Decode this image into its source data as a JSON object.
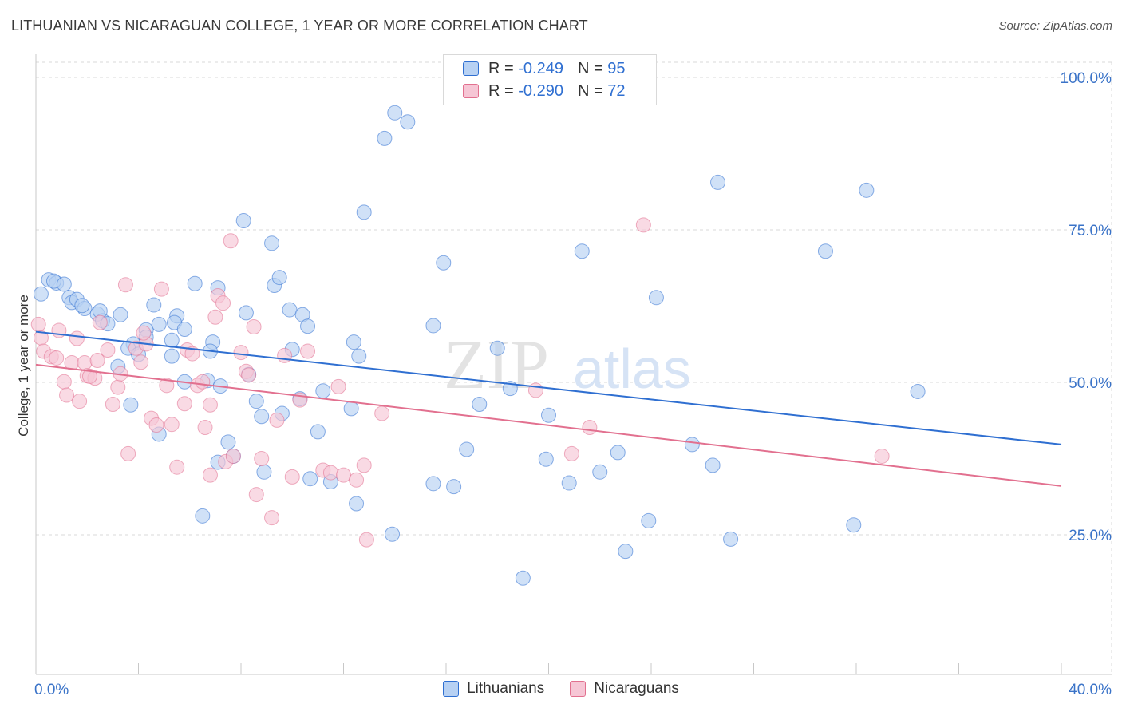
{
  "title": "LITHUANIAN VS NICARAGUAN COLLEGE, 1 YEAR OR MORE CORRELATION CHART",
  "source": "Source: ZipAtlas.com",
  "colors": {
    "blue": "#2f6fd1",
    "blue_fill": "#b7d1f3",
    "pink": "#e2708f",
    "pink_fill": "#f6c6d5",
    "grid": "#d9d9d9",
    "axis_label": "#3a73c8"
  },
  "legend": {
    "r_label": "R =",
    "n_label": "N =",
    "lithuanians": {
      "r": "-0.249",
      "n": "95"
    },
    "nicaraguans": {
      "r": "-0.290",
      "n": "72"
    }
  },
  "bottom_legend": {
    "lithuanians": "Lithuanians",
    "nicaraguans": "Nicaraguans"
  },
  "watermark": {
    "zip": "ZIP",
    "atlas": "atlas"
  },
  "chart_data": {
    "type": "scatter",
    "xlabel": "",
    "ylabel": "College, 1 year or more",
    "xlim": [
      0,
      40
    ],
    "ylim": [
      0,
      105
    ],
    "x_tick_labels": [
      "0.0%",
      "40.0%"
    ],
    "y_ticks": [
      25,
      50,
      75,
      100
    ],
    "y_tick_labels": [
      "25.0%",
      "50.0%",
      "75.0%",
      "100.0%"
    ],
    "grid": true,
    "series": [
      {
        "name": "Lithuanians",
        "trend": {
          "x": [
            0,
            40
          ],
          "y": [
            58.3,
            39.8
          ]
        },
        "points": [
          [
            0.2,
            64.5
          ],
          [
            0.5,
            66.8
          ],
          [
            0.8,
            66.3
          ],
          [
            0.7,
            66.6
          ],
          [
            1.1,
            66.1
          ],
          [
            1.3,
            63.9
          ],
          [
            1.4,
            63.1
          ],
          [
            1.6,
            63.6
          ],
          [
            1.9,
            62.1
          ],
          [
            1.8,
            62.6
          ],
          [
            2.4,
            61.2
          ],
          [
            2.6,
            60.1
          ],
          [
            2.5,
            61.7
          ],
          [
            3.3,
            61.1
          ],
          [
            3.8,
            56.3
          ],
          [
            4.3,
            58.6
          ],
          [
            3.6,
            55.6
          ],
          [
            4.6,
            62.7
          ],
          [
            4.8,
            59.5
          ],
          [
            5.5,
            60.9
          ],
          [
            5.4,
            59.8
          ],
          [
            5.8,
            58.7
          ],
          [
            6.2,
            66.2
          ],
          [
            6.9,
            56.6
          ],
          [
            7.1,
            65.5
          ],
          [
            8.1,
            76.5
          ],
          [
            8.2,
            61.4
          ],
          [
            9.2,
            72.8
          ],
          [
            9.3,
            65.9
          ],
          [
            9.5,
            67.2
          ],
          [
            9.9,
            61.9
          ],
          [
            10.4,
            61.1
          ],
          [
            10.6,
            59.2
          ],
          [
            3.2,
            52.6
          ],
          [
            4.0,
            54.6
          ],
          [
            4.3,
            57.4
          ],
          [
            5.3,
            54.3
          ],
          [
            5.8,
            50.1
          ],
          [
            6.7,
            50.3
          ],
          [
            6.8,
            55.1
          ],
          [
            7.2,
            49.4
          ],
          [
            8.3,
            51.3
          ],
          [
            8.6,
            46.9
          ],
          [
            8.8,
            44.4
          ],
          [
            9.6,
            44.9
          ],
          [
            10.0,
            55.4
          ],
          [
            10.3,
            47.3
          ],
          [
            11.2,
            48.6
          ],
          [
            12.4,
            56.6
          ],
          [
            12.6,
            54.3
          ],
          [
            12.3,
            45.7
          ],
          [
            13.6,
            90.0
          ],
          [
            14.0,
            94.2
          ],
          [
            14.5,
            92.7
          ],
          [
            12.8,
            77.9
          ],
          [
            15.9,
            69.6
          ],
          [
            15.5,
            59.3
          ],
          [
            18.0,
            55.6
          ],
          [
            18.5,
            49.0
          ],
          [
            17.3,
            46.4
          ],
          [
            20.0,
            44.6
          ],
          [
            21.3,
            71.5
          ],
          [
            24.2,
            63.9
          ],
          [
            26.6,
            82.8
          ],
          [
            30.8,
            71.5
          ],
          [
            32.4,
            81.5
          ],
          [
            34.4,
            48.5
          ],
          [
            3.7,
            46.3
          ],
          [
            4.8,
            41.5
          ],
          [
            7.1,
            36.9
          ],
          [
            7.5,
            40.2
          ],
          [
            7.7,
            37.9
          ],
          [
            8.9,
            35.3
          ],
          [
            10.7,
            34.2
          ],
          [
            11.0,
            41.9
          ],
          [
            11.5,
            33.7
          ],
          [
            12.5,
            30.1
          ],
          [
            13.9,
            25.1
          ],
          [
            15.5,
            33.4
          ],
          [
            16.3,
            32.9
          ],
          [
            16.8,
            39.0
          ],
          [
            19.0,
            17.9
          ],
          [
            19.9,
            37.4
          ],
          [
            20.8,
            33.5
          ],
          [
            22.0,
            35.3
          ],
          [
            22.7,
            38.5
          ],
          [
            23.9,
            27.3
          ],
          [
            23.0,
            22.3
          ],
          [
            25.6,
            39.8
          ],
          [
            26.4,
            36.4
          ],
          [
            27.1,
            24.3
          ],
          [
            31.9,
            26.6
          ],
          [
            6.5,
            28.1
          ],
          [
            5.3,
            56.9
          ],
          [
            2.8,
            59.6
          ]
        ]
      },
      {
        "name": "Nicaraguans",
        "trend": {
          "x": [
            0,
            40
          ],
          "y": [
            52.9,
            33.0
          ]
        },
        "points": [
          [
            0.1,
            59.5
          ],
          [
            0.2,
            57.3
          ],
          [
            0.3,
            55.1
          ],
          [
            0.6,
            54.2
          ],
          [
            0.9,
            58.5
          ],
          [
            1.1,
            50.1
          ],
          [
            1.2,
            47.9
          ],
          [
            1.4,
            53.2
          ],
          [
            1.6,
            57.2
          ],
          [
            1.7,
            46.9
          ],
          [
            1.9,
            53.2
          ],
          [
            2.0,
            51.1
          ],
          [
            2.3,
            50.7
          ],
          [
            2.4,
            53.6
          ],
          [
            2.5,
            59.8
          ],
          [
            2.8,
            55.3
          ],
          [
            3.0,
            46.4
          ],
          [
            3.2,
            49.2
          ],
          [
            3.3,
            51.4
          ],
          [
            3.5,
            66.0
          ],
          [
            3.9,
            55.6
          ],
          [
            4.1,
            53.3
          ],
          [
            4.3,
            56.3
          ],
          [
            4.5,
            44.1
          ],
          [
            4.7,
            43.0
          ],
          [
            4.9,
            65.3
          ],
          [
            5.1,
            49.5
          ],
          [
            5.3,
            43.1
          ],
          [
            5.5,
            36.1
          ],
          [
            5.8,
            46.5
          ],
          [
            5.9,
            55.3
          ],
          [
            6.1,
            54.7
          ],
          [
            6.3,
            49.5
          ],
          [
            6.5,
            50.1
          ],
          [
            6.6,
            42.6
          ],
          [
            6.8,
            46.3
          ],
          [
            7.0,
            60.7
          ],
          [
            7.1,
            64.2
          ],
          [
            7.3,
            63.0
          ],
          [
            7.4,
            37.0
          ],
          [
            7.6,
            73.2
          ],
          [
            7.7,
            37.9
          ],
          [
            8.0,
            54.9
          ],
          [
            8.2,
            51.8
          ],
          [
            8.3,
            51.2
          ],
          [
            8.5,
            59.1
          ],
          [
            8.6,
            31.6
          ],
          [
            8.8,
            37.5
          ],
          [
            9.2,
            27.8
          ],
          [
            9.4,
            43.8
          ],
          [
            9.7,
            54.4
          ],
          [
            10.0,
            34.5
          ],
          [
            10.3,
            47.1
          ],
          [
            10.6,
            55.1
          ],
          [
            11.2,
            35.6
          ],
          [
            11.5,
            35.2
          ],
          [
            11.8,
            49.3
          ],
          [
            12.0,
            34.8
          ],
          [
            12.5,
            34.0
          ],
          [
            12.8,
            36.4
          ],
          [
            12.9,
            24.2
          ],
          [
            13.5,
            44.9
          ],
          [
            19.5,
            48.7
          ],
          [
            20.9,
            38.3
          ],
          [
            21.6,
            42.6
          ],
          [
            23.7,
            75.8
          ],
          [
            33.0,
            37.9
          ],
          [
            3.6,
            38.3
          ],
          [
            6.8,
            34.8
          ],
          [
            2.1,
            51.0
          ],
          [
            4.2,
            58.1
          ],
          [
            0.8,
            54.0
          ]
        ]
      }
    ]
  }
}
